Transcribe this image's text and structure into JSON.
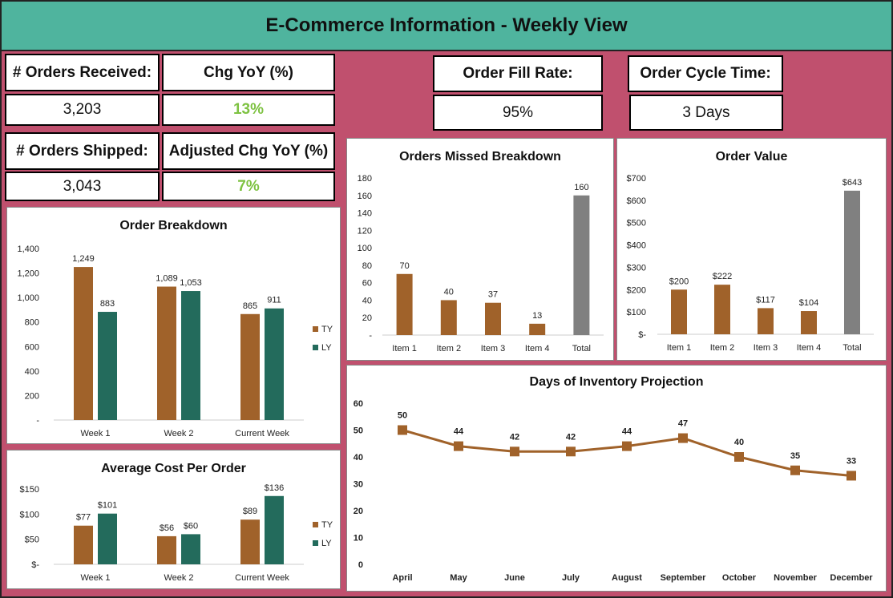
{
  "title": "E-Commerce Information - Weekly View",
  "kpis": {
    "orders_received_label": "# Orders Received:",
    "orders_received_value": "3,203",
    "chg_yoy_label": "Chg YoY (%)",
    "chg_yoy_value": "13%",
    "orders_shipped_label": "# Orders Shipped:",
    "orders_shipped_value": "3,043",
    "adj_chg_yoy_label": "Adjusted Chg YoY (%)",
    "adj_chg_yoy_value": "7%",
    "fill_rate_label": "Order Fill Rate:",
    "fill_rate_value": "95%",
    "cycle_time_label": "Order Cycle Time:",
    "cycle_time_value": "3 Days"
  },
  "colors": {
    "background": "#c0506e",
    "header": "#4fb49e",
    "ty": "#a0622a",
    "ly": "#236b5c",
    "total": "#808080",
    "line": "#a0622a",
    "positive": "#7ec242"
  },
  "chart_data": [
    {
      "id": "order_breakdown",
      "type": "bar",
      "title": "Order Breakdown",
      "categories": [
        "Week 1",
        "Week 2",
        "Current Week"
      ],
      "series": [
        {
          "name": "TY",
          "values": [
            1249,
            1089,
            865
          ],
          "labels": [
            "1,249",
            "1,089",
            "865"
          ]
        },
        {
          "name": "LY",
          "values": [
            883,
            1053,
            911
          ],
          "labels": [
            "883",
            "1,053",
            "911"
          ]
        }
      ],
      "yticks": [
        "-",
        "200",
        "400",
        "600",
        "800",
        "1,000",
        "1,200",
        "1,400"
      ],
      "ylim": [
        0,
        1400
      ],
      "legend": "right"
    },
    {
      "id": "avg_cost",
      "type": "bar",
      "title": "Average Cost Per Order",
      "categories": [
        "Week 1",
        "Week 2",
        "Current Week"
      ],
      "series": [
        {
          "name": "TY",
          "values": [
            77,
            56,
            89
          ],
          "labels": [
            "$77",
            "$56",
            "$89"
          ]
        },
        {
          "name": "LY",
          "values": [
            101,
            60,
            136
          ],
          "labels": [
            "$101",
            "$60",
            "$136"
          ]
        }
      ],
      "yticks": [
        "$-",
        "$50",
        "$100",
        "$150"
      ],
      "ylim": [
        0,
        150
      ],
      "legend": "right"
    },
    {
      "id": "orders_missed",
      "type": "bar",
      "title": "Orders Missed Breakdown",
      "categories": [
        "Item 1",
        "Item 2",
        "Item 3",
        "Item 4",
        "Total"
      ],
      "series": [
        {
          "values": [
            70,
            40,
            37,
            13,
            160
          ],
          "labels": [
            "70",
            "40",
            "37",
            "13",
            "160"
          ]
        }
      ],
      "yticks": [
        "-",
        "20",
        "40",
        "60",
        "80",
        "100",
        "120",
        "140",
        "160",
        "180"
      ],
      "ylim": [
        0,
        180
      ]
    },
    {
      "id": "order_value",
      "type": "bar",
      "title": "Order Value",
      "categories": [
        "Item 1",
        "Item 2",
        "Item 3",
        "Item 4",
        "Total"
      ],
      "series": [
        {
          "values": [
            200,
            222,
            117,
            104,
            643
          ],
          "labels": [
            "$200",
            "$222",
            "$117",
            "$104",
            "$643"
          ]
        }
      ],
      "yticks": [
        "$-",
        "$100",
        "$200",
        "$300",
        "$400",
        "$500",
        "$600",
        "$700"
      ],
      "ylim": [
        0,
        700
      ]
    },
    {
      "id": "inventory_projection",
      "type": "line",
      "title": "Days of Inventory Projection",
      "categories": [
        "April",
        "May",
        "June",
        "July",
        "August",
        "September",
        "October",
        "November",
        "December"
      ],
      "series": [
        {
          "values": [
            50,
            44,
            42,
            42,
            44,
            47,
            40,
            35,
            33
          ],
          "labels": [
            "50",
            "44",
            "42",
            "42",
            "44",
            "47",
            "40",
            "35",
            "33"
          ]
        }
      ],
      "yticks": [
        "0",
        "10",
        "20",
        "30",
        "40",
        "50",
        "60"
      ],
      "ylim": [
        0,
        60
      ]
    }
  ]
}
